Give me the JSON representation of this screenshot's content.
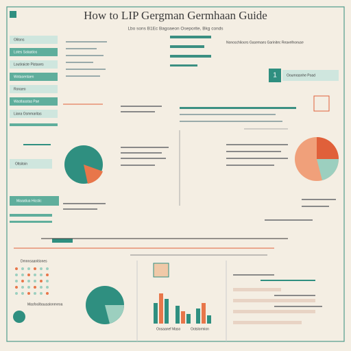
{
  "header": {
    "title": "How  to LIP Gergman Germhaan Guide",
    "subtitle": "Lbo sons B1Ec Bagoaeon Oseporite, Bkg conds"
  },
  "sidebar": [
    "Olitons",
    "Lotes Salaatios",
    "Loutiraicte Pistaoes",
    "Wotasentaen",
    "Ronaeo",
    "Wastlaastas Pae",
    "Liana Osmmaritas"
  ],
  "panels": {
    "step": "1",
    "step_label": "Ooumrasnhe Poad",
    "sidebar_tag": "Oltsitoin",
    "highlight": "Maaatiua Hicstic",
    "right_note": "Nonoschlioces Gasemaes Garinitec Reavelhoeuse",
    "bottom_left": "Dmnnsaanitiones",
    "bottom_left2": "Masfocilbausalonrneoa",
    "bottom_mid1": "Oosaanef Maso",
    "bottom_mid2": "Ootslormion"
  }
}
